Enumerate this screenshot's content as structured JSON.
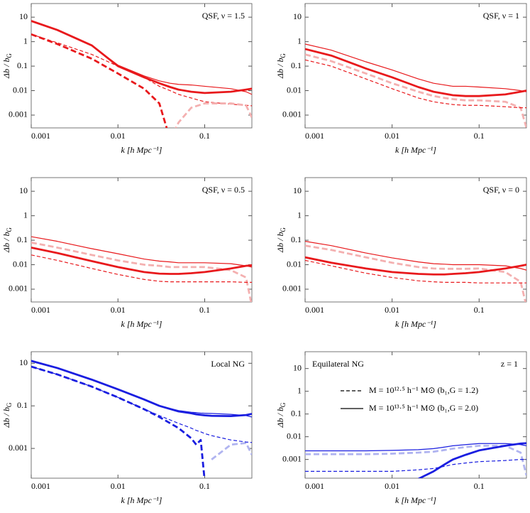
{
  "chart_data": [
    {
      "type": "line",
      "title": "QSF, ν = 1.5",
      "title_corner": "top-right",
      "xlabel": "k [h Mpc⁻¹]",
      "ylabel": "Δb / b",
      "ylabel_sub": "G",
      "log": true,
      "xlim": [
        0.001,
        0.35
      ],
      "ylim": [
        0.0003,
        36
      ],
      "xticks": [
        0.001,
        0.01,
        0.1
      ],
      "yticks": [
        0.001,
        0.01,
        0.1,
        1,
        10
      ],
      "x": [
        0.001,
        0.002,
        0.005,
        0.01,
        0.02,
        0.03,
        0.04,
        0.05,
        0.07,
        0.1,
        0.2,
        0.3,
        0.35
      ],
      "series": [
        {
          "color": "#e8191c",
          "weight": "thin",
          "dash": false,
          "values": [
            7,
            3,
            0.7,
            0.11,
            0.04,
            0.025,
            0.02,
            0.018,
            0.017,
            0.015,
            0.012,
            0.009,
            0.007
          ]
        },
        {
          "color": "#e8191c",
          "weight": "thick",
          "dash": false,
          "values": [
            7,
            3,
            0.7,
            0.1,
            0.035,
            0.02,
            0.014,
            0.011,
            0.009,
            0.008,
            0.009,
            0.011,
            0.012
          ]
        },
        {
          "color": "#e8191c",
          "weight": "thin",
          "dash": true,
          "values": [
            2,
            0.9,
            0.3,
            0.1,
            0.035,
            0.015,
            0.01,
            0.007,
            0.005,
            0.0035,
            0.0028,
            0.0025,
            0.0024
          ]
        },
        {
          "color": "#e8191c",
          "weight": "thick",
          "dash": true,
          "values": [
            2,
            0.8,
            0.2,
            0.05,
            0.012,
            0.003,
            0.0001,
            null,
            null,
            null,
            null,
            null,
            null
          ]
        },
        {
          "color": "#f4b0b0",
          "weight": "thick",
          "dash": true,
          "values": [
            null,
            null,
            null,
            null,
            null,
            null,
            0.0001,
            0.0005,
            0.002,
            0.003,
            0.003,
            0.0025,
            0.0008
          ]
        }
      ]
    },
    {
      "type": "line",
      "title": "QSF, ν = 1",
      "title_corner": "top-right",
      "xlabel": "k [h Mpc⁻¹]",
      "ylabel": "Δb / b",
      "ylabel_sub": "G",
      "log": true,
      "xlim": [
        0.001,
        0.35
      ],
      "ylim": [
        0.0003,
        36
      ],
      "xticks": [
        0.001,
        0.01,
        0.1
      ],
      "yticks": [
        0.001,
        0.01,
        0.1,
        1,
        10
      ],
      "x": [
        0.001,
        0.002,
        0.005,
        0.01,
        0.02,
        0.03,
        0.04,
        0.05,
        0.07,
        0.1,
        0.2,
        0.3,
        0.35
      ],
      "series": [
        {
          "color": "#e8191c",
          "weight": "thin",
          "dash": false,
          "values": [
            0.8,
            0.45,
            0.15,
            0.07,
            0.03,
            0.02,
            0.017,
            0.015,
            0.015,
            0.014,
            0.012,
            0.01,
            0.009
          ]
        },
        {
          "color": "#e8191c",
          "weight": "thick",
          "dash": false,
          "values": [
            0.5,
            0.27,
            0.08,
            0.035,
            0.014,
            0.009,
            0.0075,
            0.0065,
            0.006,
            0.006,
            0.007,
            0.009,
            0.01
          ]
        },
        {
          "color": "#f4b0b0",
          "weight": "thick",
          "dash": true,
          "values": [
            0.3,
            0.16,
            0.05,
            0.02,
            0.009,
            0.006,
            0.005,
            0.0045,
            0.004,
            0.004,
            0.0035,
            0.002,
            0.0003
          ]
        },
        {
          "color": "#e8191c",
          "weight": "thin",
          "dash": true,
          "values": [
            0.18,
            0.1,
            0.03,
            0.012,
            0.005,
            0.0035,
            0.003,
            0.0027,
            0.0025,
            0.0025,
            0.0022,
            0.002,
            0.002
          ]
        }
      ]
    },
    {
      "type": "line",
      "title": "QSF, ν = 0.5",
      "title_corner": "top-right",
      "xlabel": "k [h Mpc⁻¹]",
      "ylabel": "Δb / b",
      "ylabel_sub": "G",
      "log": true,
      "xlim": [
        0.001,
        0.35
      ],
      "ylim": [
        0.0003,
        36
      ],
      "xticks": [
        0.001,
        0.01,
        0.1
      ],
      "yticks": [
        0.001,
        0.01,
        0.1,
        1,
        10
      ],
      "x": [
        0.001,
        0.002,
        0.005,
        0.01,
        0.02,
        0.03,
        0.04,
        0.05,
        0.07,
        0.1,
        0.2,
        0.3,
        0.35
      ],
      "series": [
        {
          "color": "#e8191c",
          "weight": "thin",
          "dash": false,
          "values": [
            0.14,
            0.09,
            0.045,
            0.028,
            0.017,
            0.014,
            0.013,
            0.012,
            0.012,
            0.012,
            0.011,
            0.009,
            0.008
          ]
        },
        {
          "color": "#f4b0b0",
          "weight": "thick",
          "dash": true,
          "values": [
            0.08,
            0.05,
            0.025,
            0.015,
            0.01,
            0.009,
            0.008,
            0.008,
            0.008,
            0.008,
            0.006,
            0.003,
            0.0002
          ]
        },
        {
          "color": "#e8191c",
          "weight": "thick",
          "dash": false,
          "values": [
            0.05,
            0.03,
            0.014,
            0.008,
            0.005,
            0.0043,
            0.0042,
            0.0042,
            0.0045,
            0.005,
            0.007,
            0.009,
            0.0095
          ]
        },
        {
          "color": "#e8191c",
          "weight": "thin",
          "dash": true,
          "values": [
            0.025,
            0.015,
            0.007,
            0.004,
            0.0025,
            0.0021,
            0.002,
            0.002,
            0.002,
            0.002,
            0.002,
            0.0019,
            0.0019
          ]
        }
      ]
    },
    {
      "type": "line",
      "title": "QSF, ν = 0",
      "title_corner": "top-right",
      "xlabel": "k [h Mpc⁻¹]",
      "ylabel": "Δb / b",
      "ylabel_sub": "G",
      "log": true,
      "xlim": [
        0.001,
        0.35
      ],
      "ylim": [
        0.0003,
        36
      ],
      "xticks": [
        0.001,
        0.01,
        0.1
      ],
      "yticks": [
        0.001,
        0.01,
        0.1,
        1,
        10
      ],
      "x": [
        0.001,
        0.002,
        0.005,
        0.01,
        0.02,
        0.03,
        0.04,
        0.05,
        0.07,
        0.1,
        0.2,
        0.3,
        0.35
      ],
      "series": [
        {
          "color": "#e8191c",
          "weight": "thin",
          "dash": false,
          "values": [
            0.09,
            0.06,
            0.03,
            0.019,
            0.013,
            0.011,
            0.0105,
            0.01,
            0.01,
            0.01,
            0.009,
            0.007,
            0.006
          ]
        },
        {
          "color": "#f4b0b0",
          "weight": "thick",
          "dash": true,
          "values": [
            0.06,
            0.04,
            0.02,
            0.012,
            0.008,
            0.007,
            0.0068,
            0.0068,
            0.0068,
            0.007,
            0.005,
            0.002,
            0.0002
          ]
        },
        {
          "color": "#e8191c",
          "weight": "thick",
          "dash": false,
          "values": [
            0.02,
            0.012,
            0.007,
            0.005,
            0.0042,
            0.004,
            0.004,
            0.0042,
            0.0045,
            0.005,
            0.007,
            0.009,
            0.01
          ]
        },
        {
          "color": "#e8191c",
          "weight": "thin",
          "dash": true,
          "values": [
            0.015,
            0.009,
            0.0045,
            0.003,
            0.0022,
            0.002,
            0.0019,
            0.0019,
            0.0019,
            0.0018,
            0.0018,
            0.0018,
            0.0018
          ]
        }
      ]
    },
    {
      "type": "line",
      "title": "Local NG",
      "title_corner": "top-right",
      "xlabel": "k [h Mpc⁻¹]",
      "ylabel": "Δb / b",
      "ylabel_sub": "G",
      "log": true,
      "xlim": [
        0.001,
        0.35
      ],
      "ylim": [
        4e-05,
        35
      ],
      "xticks": [
        0.001,
        0.01,
        0.1
      ],
      "yticks": [
        0.001,
        0.1,
        10
      ],
      "x": [
        0.001,
        0.002,
        0.005,
        0.01,
        0.02,
        0.03,
        0.05,
        0.07,
        0.08,
        0.09,
        0.1,
        0.12,
        0.2,
        0.3,
        0.35
      ],
      "series": [
        {
          "color": "#1a1ee0",
          "weight": "thick",
          "dash": false,
          "values": [
            13,
            6,
            1.7,
            0.6,
            0.2,
            0.1,
            0.055,
            0.045,
            0.04,
            0.038,
            0.036,
            0.034,
            0.033,
            0.037,
            0.042
          ]
        },
        {
          "color": "#1a1ee0",
          "weight": "thin",
          "dash": false,
          "values": [
            13,
            6,
            1.7,
            0.6,
            0.2,
            0.1,
            0.06,
            0.05,
            0.048,
            0.046,
            0.045,
            0.044,
            0.04,
            0.035,
            0.03
          ]
        },
        {
          "color": "#1a1ee0",
          "weight": "thick",
          "dash": true,
          "values": [
            7,
            3,
            0.8,
            0.25,
            0.07,
            0.03,
            0.009,
            0.003,
            0.0015,
            0.0025,
            3e-05,
            null,
            null,
            null,
            null
          ]
        },
        {
          "color": "#b0b4f0",
          "weight": "thick",
          "dash": true,
          "values": [
            null,
            null,
            null,
            null,
            null,
            null,
            null,
            null,
            null,
            null,
            null,
            0.0003,
            0.0015,
            0.0018,
            0.0005
          ]
        },
        {
          "color": "#1a1ee0",
          "weight": "thin",
          "dash": true,
          "values": [
            7,
            3,
            0.8,
            0.25,
            0.07,
            0.035,
            0.015,
            0.009,
            0.007,
            0.006,
            0.005,
            0.004,
            0.0025,
            0.002,
            0.0019
          ]
        }
      ]
    },
    {
      "type": "line",
      "title": "Equilateral NG",
      "title_corner": "top-left",
      "annotation": "z = 1",
      "xlabel": "k [h Mpc⁻¹]",
      "ylabel": "Δb / b",
      "ylabel_sub": "G",
      "log": true,
      "xlim": [
        0.001,
        0.35
      ],
      "ylim": [
        0.00015,
        55
      ],
      "xticks": [
        0.001,
        0.01,
        0.1
      ],
      "yticks": [
        0.001,
        0.01,
        0.1,
        1,
        10
      ],
      "legend": [
        {
          "label": "M = 10¹²·⁵ h⁻¹ M⊙ (b₁,G = 1.2)",
          "dash": true
        },
        {
          "label": "M = 10¹³·⁵ h⁻¹ M⊙ (b₁,G = 2.0)",
          "dash": false
        }
      ],
      "x": [
        0.001,
        0.002,
        0.005,
        0.01,
        0.02,
        0.03,
        0.04,
        0.05,
        0.07,
        0.1,
        0.2,
        0.3,
        0.35
      ],
      "series": [
        {
          "color": "#1a1ee0",
          "weight": "thin",
          "dash": false,
          "values": [
            0.0024,
            0.0024,
            0.0024,
            0.0025,
            0.0027,
            0.003,
            0.0035,
            0.004,
            0.0045,
            0.005,
            0.005,
            0.0045,
            0.004
          ]
        },
        {
          "color": "#b0b4f0",
          "weight": "thick",
          "dash": true,
          "values": [
            0.0017,
            0.0017,
            0.0017,
            0.0018,
            0.002,
            0.0022,
            0.0026,
            0.003,
            0.0035,
            0.004,
            0.004,
            0.002,
            0.0002
          ]
        },
        {
          "color": "#1a1ee0",
          "weight": "thin",
          "dash": true,
          "values": [
            0.0003,
            0.0003,
            0.0003,
            0.0003,
            0.00035,
            0.0004,
            0.0005,
            0.0006,
            0.0007,
            0.0008,
            0.0009,
            0.001,
            0.001
          ]
        },
        {
          "color": "#1a1ee0",
          "weight": "thick",
          "dash": false,
          "values": [
            null,
            null,
            null,
            null,
            0.00014,
            0.0003,
            0.0006,
            0.001,
            0.0016,
            0.0025,
            0.004,
            0.005,
            0.0052
          ]
        }
      ]
    }
  ]
}
